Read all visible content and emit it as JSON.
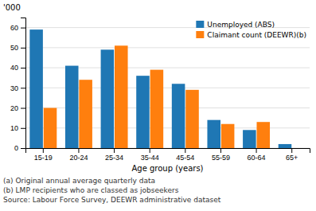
{
  "chart_data": {
    "type": "bar",
    "categories": [
      "15-19",
      "20-24",
      "25-34",
      "35-44",
      "45-54",
      "55-59",
      "60-64",
      "65+"
    ],
    "series": [
      {
        "name": "Unemployed (ABS)",
        "values": [
          59,
          41,
          49,
          36,
          32,
          14,
          9,
          2
        ]
      },
      {
        "name": "Claimant count (DEEWR)(b)",
        "values": [
          20,
          34,
          51,
          39,
          29,
          12,
          13,
          0
        ]
      }
    ],
    "xlabel": "Age group (years)",
    "ylabel": "'000",
    "ylim": [
      0,
      65
    ],
    "yticks": [
      0,
      10,
      20,
      30,
      40,
      50,
      60
    ],
    "grid": true,
    "legend": "top-right",
    "annotations": [
      "(a) Original annual average quarterly data",
      "(b) LMP recipients who are classed as jobseekers",
      "Source: Labour Force Survey, DEEWR administrative dataset"
    ]
  }
}
